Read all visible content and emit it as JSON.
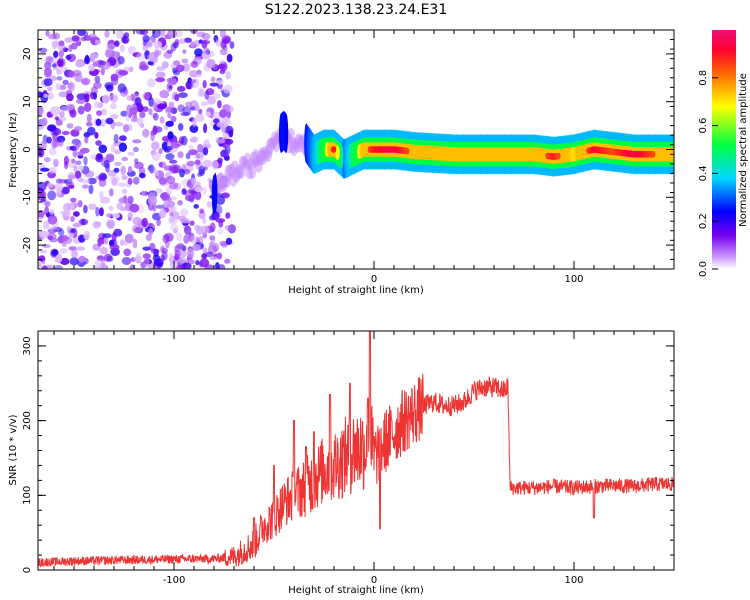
{
  "title": "S122.2023.138.23.24.E31",
  "colors": {
    "snr_line": "#ee3333",
    "frame": "#000000",
    "colormap": [
      "#ffffff",
      "#cc99ff",
      "#7700ee",
      "#0000ff",
      "#00d8ff",
      "#00ff40",
      "#ffff00",
      "#ff6600",
      "#ff0033",
      "#ee1177"
    ]
  },
  "chart_data": [
    {
      "type": "heatmap",
      "xlabel": "Height of straight line (km)",
      "ylabel": "Frequency (Hz)",
      "xlim": [
        -168,
        150
      ],
      "ylim": [
        -25,
        25
      ],
      "xticks": [
        -100,
        0,
        100
      ],
      "xtick_labels": [
        "-100",
        "0",
        "100"
      ],
      "yticks": [
        -20,
        -10,
        0,
        10,
        20
      ],
      "ytick_labels": [
        "-20",
        "-10",
        "0",
        "10",
        "20"
      ],
      "grid": false,
      "colorbar": {
        "label": "Normalized spectral amplitude",
        "range": [
          0,
          1
        ],
        "ticks": [
          0.0,
          0.2,
          0.4,
          0.6,
          0.8
        ],
        "tick_labels": [
          "0.0",
          "0.2",
          "0.4",
          "0.6",
          "0.8"
        ]
      },
      "ridge": {
        "description_x": [
          -80,
          -75,
          -70,
          -65,
          -60,
          -55,
          -50,
          -45,
          -40,
          -35,
          -30,
          -25,
          -20,
          -15,
          -10,
          -5,
          0,
          10,
          20,
          40,
          60,
          80,
          90,
          100,
          110,
          120,
          130,
          140,
          150
        ],
        "frequency_hz": [
          -9.5,
          -6,
          -5,
          -4,
          -3,
          -1,
          2,
          4,
          1,
          2,
          -1,
          0,
          0,
          -2,
          -1,
          0,
          0,
          0,
          -0.5,
          -1,
          -1,
          -1,
          -1.5,
          -1,
          0,
          -0.5,
          -1,
          -1,
          -1
        ],
        "amplitude": [
          0.25,
          0.2,
          0.22,
          0.2,
          0.22,
          0.2,
          0.22,
          0.25,
          0.2,
          0.22,
          0.35,
          0.55,
          0.9,
          0.3,
          0.5,
          0.8,
          0.9,
          0.95,
          0.8,
          0.82,
          0.8,
          0.75,
          0.9,
          0.7,
          0.92,
          0.85,
          0.95,
          0.85,
          0.8
        ]
      },
      "noise_region_x": [
        -168,
        -77
      ]
    },
    {
      "type": "line",
      "xlabel": "Height of straight line (km)",
      "ylabel": "SNR (10 * v/v)",
      "xlim": [
        -168,
        150
      ],
      "ylim": [
        0,
        320
      ],
      "xticks": [
        -100,
        0,
        100
      ],
      "xtick_labels": [
        "-100",
        "0",
        "100"
      ],
      "yticks": [
        0,
        100,
        200,
        300
      ],
      "ytick_labels": [
        "0",
        "100",
        "200",
        "300"
      ],
      "grid": false,
      "series": [
        {
          "x": [
            -168,
            -150,
            -130,
            -110,
            -90,
            -80,
            -70,
            -60,
            -55,
            -50,
            -45,
            -40,
            -35,
            -30,
            -25,
            -20,
            -15,
            -10,
            -5,
            -2,
            0,
            5,
            10,
            15,
            20,
            25,
            30,
            35,
            40,
            45,
            50,
            55,
            60,
            65,
            67,
            68,
            70,
            80,
            90,
            100,
            110,
            120,
            130,
            140,
            150
          ],
          "y": [
            10,
            12,
            13,
            14,
            15,
            15,
            18,
            35,
            60,
            70,
            90,
            100,
            110,
            120,
            135,
            140,
            150,
            160,
            165,
            170,
            150,
            170,
            185,
            200,
            210,
            220,
            225,
            220,
            220,
            225,
            240,
            245,
            245,
            240,
            245,
            110,
            110,
            110,
            112,
            110,
            112,
            113,
            112,
            115,
            115
          ],
          "spikes_x": [
            -60,
            -50,
            -40,
            -34,
            -30,
            -22,
            -12,
            -3,
            -2,
            3,
            110
          ],
          "spikes_y": [
            70,
            140,
            200,
            165,
            185,
            235,
            250,
            230,
            320,
            55,
            70
          ]
        }
      ]
    }
  ]
}
